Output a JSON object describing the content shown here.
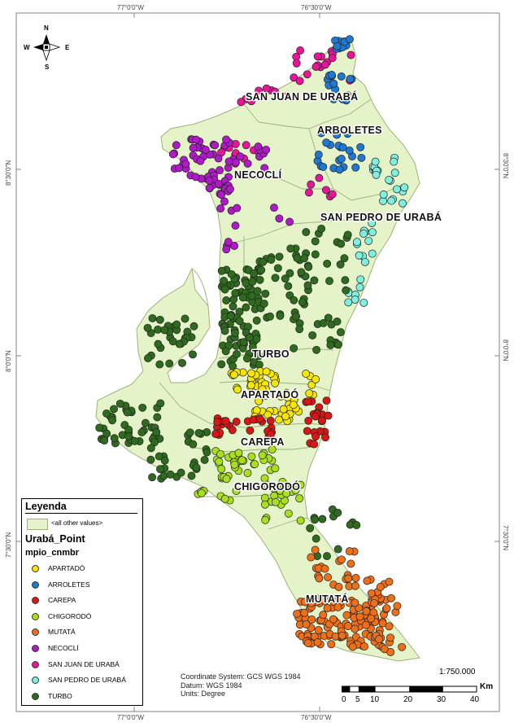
{
  "coords": {
    "top": [
      "77°0'0\"W",
      "76°30'0\"W"
    ],
    "bottom": [
      "77°0'0\"W",
      "76°30'0\"W"
    ],
    "left": [
      "8°30'0\"N",
      "8°0'0\"N",
      "7°30'0\"N"
    ],
    "right": [
      "8°30'0\"N",
      "8°0'0\"N",
      "7°30'0\"N"
    ]
  },
  "north_arrow": {
    "n": "N",
    "s": "S",
    "e": "E",
    "w": "W"
  },
  "municipality_labels": {
    "san_juan": "SAN JUAN DE URABÁ",
    "arboletes": "ARBOLETES",
    "necocli": "NECOCLÍ",
    "san_pedro": "SAN PEDRO DE URABÁ",
    "turbo": "TURBO",
    "apartado": "APARTADÓ",
    "carepa": "CAREPA",
    "chigorodo": "CHIGORODÓ",
    "mutata": "MUTATÁ"
  },
  "legend": {
    "title": "Leyenda",
    "all_other_values": "<all other values>",
    "layer": "Urabá_Point",
    "field": "mpio_cnmbr",
    "items": [
      {
        "label": "APARTADÓ",
        "color": "#f7e600"
      },
      {
        "label": "ARROLETES",
        "color": "#1f78d1"
      },
      {
        "label": "CAREPA",
        "color": "#d81616"
      },
      {
        "label": "CHIGORODÓ",
        "color": "#a8e01c"
      },
      {
        "label": "MUTATÁ",
        "color": "#ee6f17"
      },
      {
        "label": "NECOCLÍ",
        "color": "#b019c8"
      },
      {
        "label": "SAN JUAN DE URABÁ",
        "color": "#e8149a"
      },
      {
        "label": "SAN PEDRO DE URABÁ",
        "color": "#7ff0e0"
      },
      {
        "label": "TURBO",
        "color": "#2f6b1e"
      }
    ]
  },
  "crs": {
    "line1": "Coordinate System: GCS WGS 1984",
    "line2": "Datum: WGS 1984",
    "line3": "Units: Degree"
  },
  "scale": {
    "ratio": "1:750.000",
    "ticks": [
      "0",
      "5",
      "10",
      "20",
      "30",
      "40"
    ],
    "unit": "Km"
  },
  "colors": {
    "land": "#e5f3c9",
    "boundary": "#9db27a"
  }
}
